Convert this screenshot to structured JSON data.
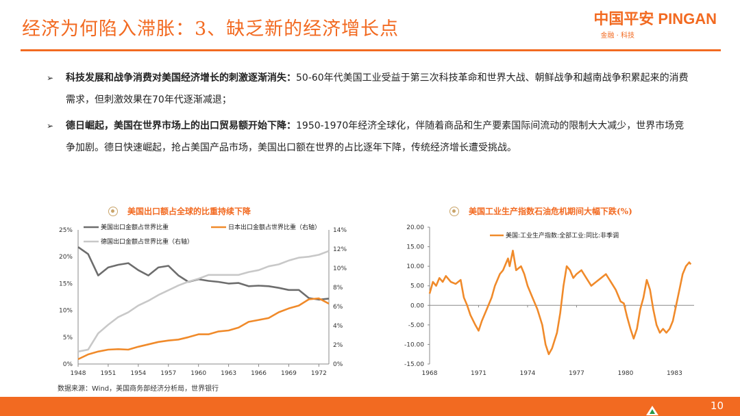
{
  "header": {
    "title": "经济为何陷入滞胀：3、缺乏新的经济增长点",
    "brand_main": "中国平安 PINGAN",
    "brand_sub": "金融 · 科技"
  },
  "bullets": [
    {
      "marker": "➢",
      "bold": "科技发展和战争消费对美国经济增长的刺激逐渐消失：",
      "text": "50-60年代美国工业受益于第三次科技革命和世界大战、朝鲜战争和越南战争积累起来的消费需求，但刺激效果在70年代逐渐减退；"
    },
    {
      "marker": "➢",
      "bold": "德日崛起，美国在世界市场上的出口贸易额开始下降：",
      "text": "1950-1970年经济全球化，伴随着商品和生产要素国际间流动的限制大大减少，世界市场竞争加剧。德日快速崛起，抢占美国产品市场，美国出口额在世界的占比逐年下降，传统经济增长遭受挑战。"
    }
  ],
  "chart_data": [
    {
      "type": "line",
      "title": "美国出口额占全球的比重持续下降",
      "x_ticks": [
        "1948",
        "1951",
        "1954",
        "1957",
        "1960",
        "1963",
        "1966",
        "1969",
        "1972"
      ],
      "xlim": [
        1948,
        1973
      ],
      "left_ticks": [
        "25%",
        "20%",
        "15%",
        "10%",
        "5%",
        "0%"
      ],
      "right_ticks": [
        "14%",
        "12%",
        "10%",
        "8%",
        "6%",
        "4%",
        "2%",
        "0%"
      ],
      "ylim_left": [
        0,
        25
      ],
      "ylim_right": [
        0,
        14
      ],
      "color_us": "#6d6d6d",
      "color_de": "#c8c8c8",
      "color_jp": "#f08a2a",
      "series": [
        {
          "name": "美国出口金额占世界比重",
          "axis": "left",
          "points": [
            [
              1948,
              21.8
            ],
            [
              1949,
              20.5
            ],
            [
              1950,
              16.5
            ],
            [
              1951,
              18
            ],
            [
              1952,
              18.5
            ],
            [
              1953,
              18.8
            ],
            [
              1954,
              17.5
            ],
            [
              1955,
              16.5
            ],
            [
              1956,
              18
            ],
            [
              1957,
              18.3
            ],
            [
              1958,
              16.5
            ],
            [
              1959,
              15.3
            ],
            [
              1960,
              15.8
            ],
            [
              1961,
              15.5
            ],
            [
              1962,
              15.3
            ],
            [
              1963,
              15
            ],
            [
              1964,
              15.1
            ],
            [
              1965,
              14.5
            ],
            [
              1966,
              14.6
            ],
            [
              1967,
              14.5
            ],
            [
              1968,
              14.2
            ],
            [
              1969,
              13.8
            ],
            [
              1970,
              13.8
            ],
            [
              1971,
              12.3
            ],
            [
              1972,
              12
            ],
            [
              1973,
              12.2
            ]
          ]
        },
        {
          "name": "日本出口金额占世界比重（右轴）",
          "axis": "right",
          "points": [
            [
              1948,
              0.5
            ],
            [
              1949,
              1
            ],
            [
              1950,
              1.3
            ],
            [
              1951,
              1.5
            ],
            [
              1952,
              1.55
            ],
            [
              1953,
              1.5
            ],
            [
              1954,
              1.8
            ],
            [
              1955,
              2.05
            ],
            [
              1956,
              2.3
            ],
            [
              1957,
              2.45
            ],
            [
              1958,
              2.55
            ],
            [
              1959,
              2.8
            ],
            [
              1960,
              3.1
            ],
            [
              1961,
              3.1
            ],
            [
              1962,
              3.4
            ],
            [
              1963,
              3.5
            ],
            [
              1964,
              3.8
            ],
            [
              1965,
              4.4
            ],
            [
              1966,
              4.6
            ],
            [
              1967,
              4.8
            ],
            [
              1968,
              5.4
            ],
            [
              1969,
              5.8
            ],
            [
              1970,
              6.1
            ],
            [
              1971,
              6.75
            ],
            [
              1972,
              6.85
            ],
            [
              1973,
              6.3
            ]
          ]
        },
        {
          "name": "德国出口金额占世界比重（右轴）",
          "axis": "right",
          "points": [
            [
              1948,
              1.3
            ],
            [
              1949,
              1.5
            ],
            [
              1950,
              3.2
            ],
            [
              1951,
              4.1
            ],
            [
              1952,
              4.9
            ],
            [
              1953,
              5.4
            ],
            [
              1954,
              6.1
            ],
            [
              1955,
              6.6
            ],
            [
              1956,
              7.2
            ],
            [
              1957,
              7.7
            ],
            [
              1958,
              8.2
            ],
            [
              1959,
              8.6
            ],
            [
              1960,
              8.9
            ],
            [
              1961,
              9.3
            ],
            [
              1962,
              9.3
            ],
            [
              1963,
              9.3
            ],
            [
              1964,
              9.3
            ],
            [
              1965,
              9.6
            ],
            [
              1966,
              9.8
            ],
            [
              1967,
              10.2
            ],
            [
              1968,
              10.4
            ],
            [
              1969,
              10.8
            ],
            [
              1970,
              11.1
            ],
            [
              1971,
              11.2
            ],
            [
              1972,
              11.4
            ],
            [
              1973,
              11.8
            ]
          ]
        }
      ]
    },
    {
      "type": "line",
      "title": "美国工业生产指数石油危机期间大幅下跌(%)",
      "x_ticks": [
        "1968",
        "1971",
        "1974",
        "1977",
        "1980",
        "1983"
      ],
      "xlim": [
        1968,
        1984.2
      ],
      "y_ticks": [
        "20.00",
        "15.00",
        "10.00",
        "5.00",
        "0.00",
        "-5.00",
        "-10.00",
        "-15.00"
      ],
      "ylim": [
        -15,
        20
      ],
      "color": "#f08a2a",
      "series": [
        {
          "name": "美国:工业生产指数:全部工业:同比:非季调",
          "points": [
            [
              1968,
              3
            ],
            [
              1968.2,
              6
            ],
            [
              1968.4,
              5
            ],
            [
              1968.6,
              7
            ],
            [
              1968.8,
              6
            ],
            [
              1969,
              7.5
            ],
            [
              1969.3,
              6
            ],
            [
              1969.6,
              5.5
            ],
            [
              1969.9,
              6.5
            ],
            [
              1970.1,
              2
            ],
            [
              1970.3,
              0
            ],
            [
              1970.5,
              -2.5
            ],
            [
              1970.8,
              -5
            ],
            [
              1971,
              -6.5
            ],
            [
              1971.2,
              -4
            ],
            [
              1971.5,
              -1
            ],
            [
              1971.8,
              2
            ],
            [
              1972,
              5
            ],
            [
              1972.3,
              8
            ],
            [
              1972.5,
              9
            ],
            [
              1972.8,
              12
            ],
            [
              1972.9,
              10
            ],
            [
              1973.1,
              14
            ],
            [
              1973.3,
              9
            ],
            [
              1973.6,
              10
            ],
            [
              1973.8,
              8
            ],
            [
              1974,
              5
            ],
            [
              1974.3,
              2
            ],
            [
              1974.6,
              -1
            ],
            [
              1974.9,
              -5
            ],
            [
              1975.1,
              -10
            ],
            [
              1975.3,
              -12.5
            ],
            [
              1975.5,
              -11
            ],
            [
              1975.8,
              -7
            ],
            [
              1976,
              -2
            ],
            [
              1976.2,
              5
            ],
            [
              1976.4,
              10
            ],
            [
              1976.6,
              9
            ],
            [
              1976.8,
              7
            ],
            [
              1977,
              8
            ],
            [
              1977.3,
              9
            ],
            [
              1977.6,
              7
            ],
            [
              1977.9,
              5
            ],
            [
              1978.2,
              6
            ],
            [
              1978.5,
              7
            ],
            [
              1978.8,
              8
            ],
            [
              1979.1,
              6
            ],
            [
              1979.4,
              4
            ],
            [
              1979.7,
              1
            ],
            [
              1979.9,
              0.5
            ],
            [
              1980.1,
              -3
            ],
            [
              1980.3,
              -6
            ],
            [
              1980.5,
              -8.5
            ],
            [
              1980.7,
              -6
            ],
            [
              1980.9,
              -1
            ],
            [
              1981.1,
              2
            ],
            [
              1981.3,
              6.5
            ],
            [
              1981.5,
              4
            ],
            [
              1981.7,
              -1
            ],
            [
              1981.9,
              -5
            ],
            [
              1982.1,
              -7
            ],
            [
              1982.3,
              -6
            ],
            [
              1982.5,
              -7
            ],
            [
              1982.7,
              -6
            ],
            [
              1982.9,
              -4
            ],
            [
              1983.1,
              0
            ],
            [
              1983.3,
              4
            ],
            [
              1983.5,
              8
            ],
            [
              1983.7,
              10
            ],
            [
              1983.9,
              11
            ],
            [
              1984,
              10.5
            ]
          ]
        }
      ]
    }
  ],
  "source": "数据来源：Wind，美国商务部经济分析局，世界银行",
  "footer": {
    "page": "10"
  }
}
